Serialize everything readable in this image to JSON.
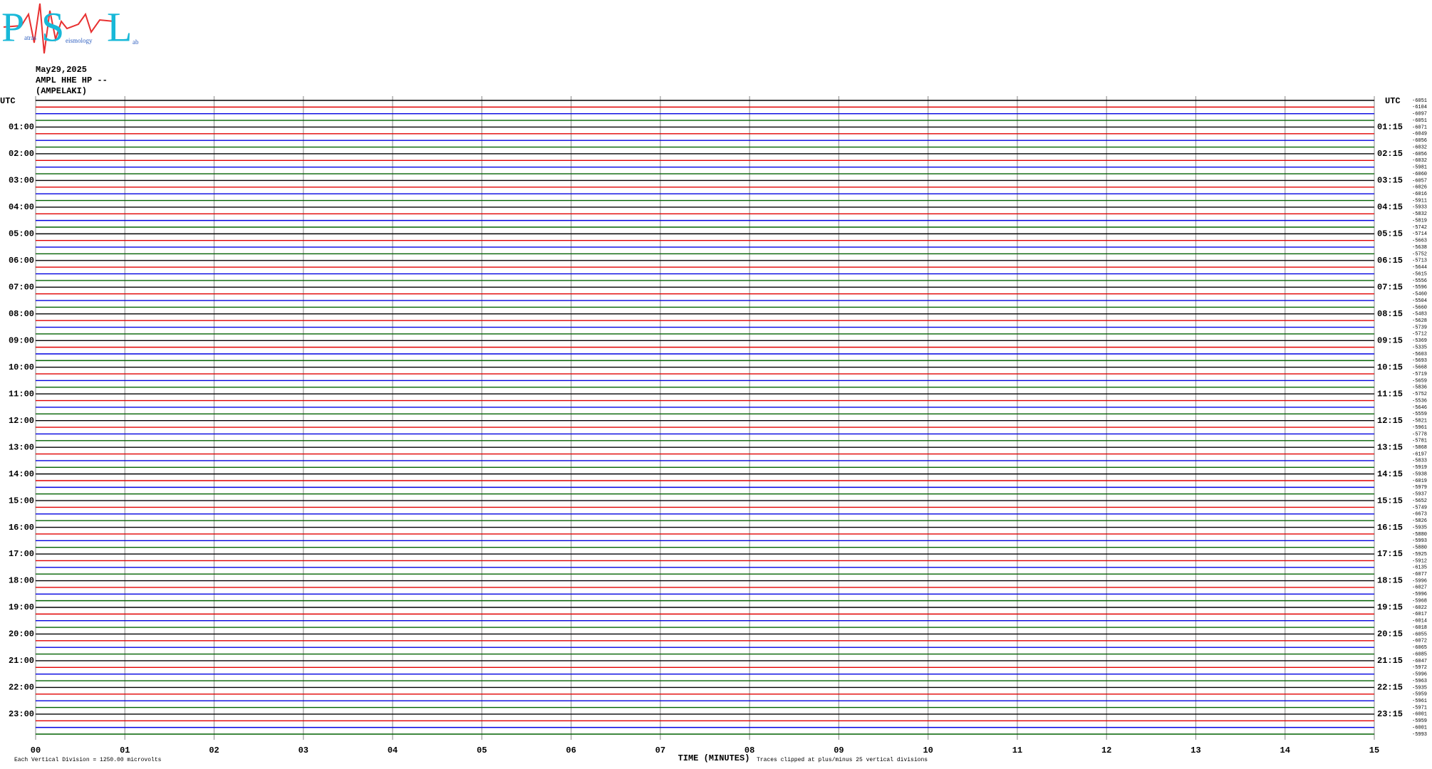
{
  "logo": {
    "letters": [
      "P",
      "S",
      "L"
    ],
    "words": [
      "atras",
      "eismology",
      "ab"
    ]
  },
  "header": {
    "date": "May29,2025",
    "channel": "AMPL HHE HP --",
    "station": "(AMPELAKI)"
  },
  "left_axis": {
    "title": "UTC",
    "labels": [
      "01:00",
      "02:00",
      "03:00",
      "04:00",
      "05:00",
      "06:00",
      "07:00",
      "08:00",
      "09:00",
      "10:00",
      "11:00",
      "12:00",
      "13:00",
      "14:00",
      "15:00",
      "16:00",
      "17:00",
      "18:00",
      "19:00",
      "20:00",
      "21:00",
      "22:00",
      "23:00"
    ]
  },
  "right_axis": {
    "title": "UTC",
    "labels": [
      "01:15",
      "02:15",
      "03:15",
      "04:15",
      "05:15",
      "06:15",
      "07:15",
      "08:15",
      "09:15",
      "10:15",
      "11:15",
      "12:15",
      "13:15",
      "14:15",
      "15:15",
      "16:15",
      "17:15",
      "18:15",
      "19:15",
      "20:15",
      "21:15",
      "22:15",
      "23:15"
    ]
  },
  "time_axis": {
    "title": "TIME (MINUTES)",
    "labels": [
      "00",
      "01",
      "02",
      "03",
      "04",
      "05",
      "06",
      "07",
      "08",
      "09",
      "10",
      "11",
      "12",
      "13",
      "14",
      "15"
    ]
  },
  "traces": {
    "colors": [
      "#000000",
      "#e00000",
      "#0000e0",
      "#006000"
    ],
    "offsets": [
      -6051,
      -6104,
      -6097,
      -6051,
      -6071,
      -6049,
      -6056,
      -6032,
      -6056,
      -6032,
      -5981,
      -6060,
      -6057,
      -6026,
      -6016,
      -5911,
      -5933,
      -5832,
      -5819,
      -5742,
      -5714,
      -5663,
      -5638,
      -5752,
      -5713,
      -5644,
      -5615,
      -5556,
      -5596,
      -5460,
      -5504,
      -5660,
      -5483,
      -5628,
      -5739,
      -5712,
      -5369,
      -5335,
      -5603,
      -5693,
      -5668,
      -5719,
      -5659,
      -5836,
      -5752,
      -5536,
      -5646,
      -5559,
      -5821,
      -5961,
      -5778,
      -5781,
      -5868,
      -6197,
      -5833,
      -5919,
      -5938,
      -6019,
      -5979,
      -5937,
      -5652,
      -5749,
      -6673,
      -5826,
      -5935,
      -5880,
      -5993,
      -5880,
      -5925,
      -5912,
      -6135,
      -6077,
      -5996,
      -6027,
      -5996,
      -5968,
      -6022,
      -6017,
      -6014,
      -6018,
      -6055,
      -6072,
      -6065,
      -6085,
      -6047,
      -5972,
      -5996,
      -5963,
      -5935,
      -5959,
      -5961,
      -5971,
      -6001,
      -5959,
      -6001,
      -5993
    ]
  },
  "footer": {
    "scale": "Each Vertical Division = 1250.00 microvolts",
    "clip": "Traces clipped at plus/minus 25 vertical divisions"
  }
}
